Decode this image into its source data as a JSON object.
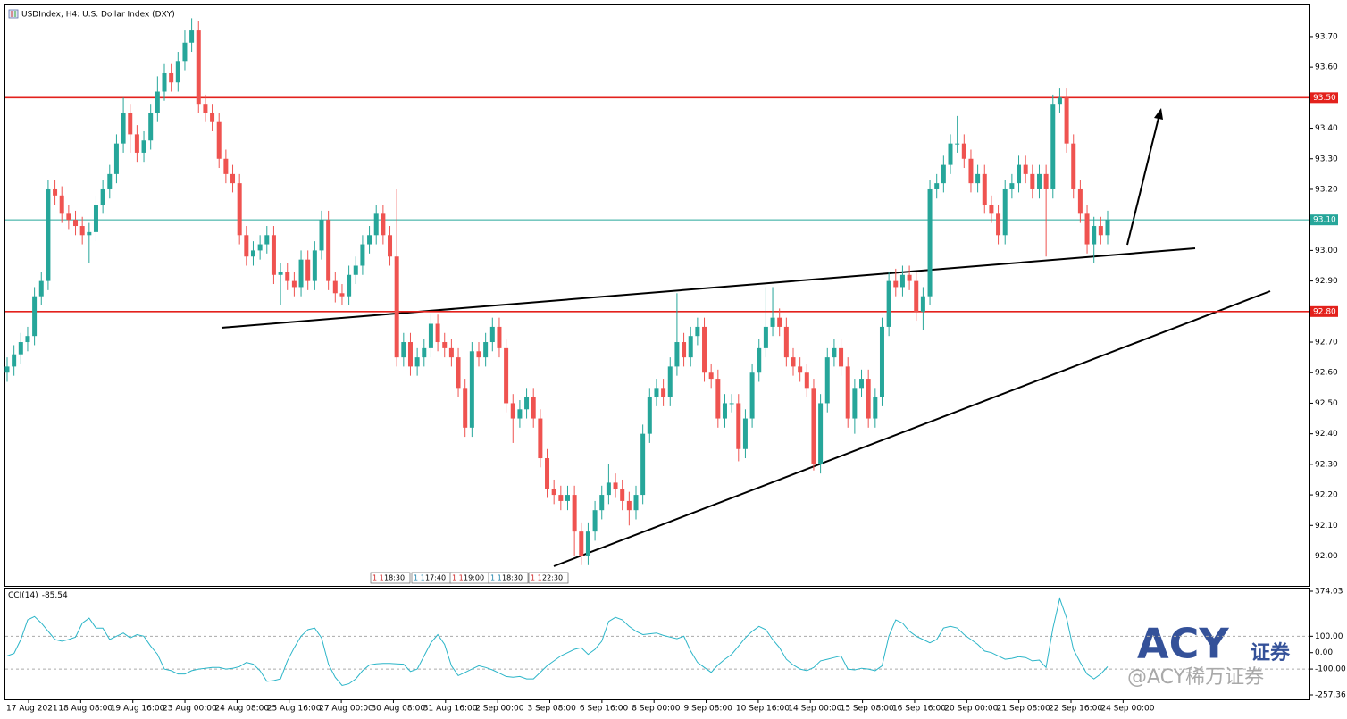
{
  "chart_data": {
    "type": "candlestick",
    "title": "USDIndex, H4:  U.S. Dollar Index (DXY)",
    "x_labels": [
      "17 Aug 2021",
      "18 Aug 08:00",
      "19 Aug 16:00",
      "23 Aug 00:00",
      "24 Aug 08:00",
      "25 Aug 16:00",
      "27 Aug 00:00",
      "30 Aug 08:00",
      "31 Aug 16:00",
      "2 Sep 00:00",
      "3 Sep 08:00",
      "6 Sep 16:00",
      "8 Sep 00:00",
      "9 Sep 08:00",
      "10 Sep 16:00",
      "14 Sep 00:00",
      "15 Sep 08:00",
      "16 Sep 16:00",
      "20 Sep 00:00",
      "21 Sep 08:00",
      "22 Sep 16:00",
      "24 Sep 00:00"
    ],
    "candles": {
      "up_color": "#26a69a",
      "down_color": "#ef5350",
      "open": [
        92.6,
        92.62,
        92.66,
        92.7,
        92.72,
        92.85,
        92.9,
        93.2,
        93.18,
        93.12,
        93.1,
        93.08,
        93.05,
        93.06,
        93.15,
        93.2,
        93.25,
        93.35,
        93.45,
        93.38,
        93.32,
        93.36,
        93.45,
        93.52,
        93.58,
        93.55,
        93.62,
        93.68,
        93.72,
        93.48,
        93.45,
        93.42,
        93.3,
        93.25,
        93.22,
        93.05,
        92.98,
        93.0,
        93.02,
        93.05,
        92.92,
        92.93,
        92.9,
        92.88,
        92.97,
        92.9,
        93.0,
        93.1,
        92.9,
        92.86,
        92.85,
        92.92,
        92.95,
        93.02,
        93.05,
        93.12,
        93.05,
        92.98,
        92.65,
        92.7,
        92.62,
        92.65,
        92.68,
        92.76,
        92.7,
        92.68,
        92.65,
        92.55,
        92.42,
        92.67,
        92.65,
        92.7,
        92.75,
        92.68,
        92.5,
        92.45,
        92.48,
        92.52,
        92.45,
        92.32,
        92.22,
        92.2,
        92.18,
        92.2,
        92.08,
        92.0,
        92.08,
        92.15,
        92.2,
        92.24,
        92.22,
        92.18,
        92.15,
        92.2,
        92.4,
        92.52,
        92.55,
        92.52,
        92.62,
        92.7,
        92.65,
        92.72,
        92.75,
        92.6,
        92.58,
        92.45,
        92.5,
        92.5,
        92.35,
        92.45,
        92.6,
        92.68,
        92.75,
        92.78,
        92.75,
        92.65,
        92.62,
        92.6,
        92.55,
        92.3,
        92.5,
        92.65,
        92.68,
        92.62,
        92.45,
        92.55,
        92.58,
        92.45,
        92.52,
        92.75,
        92.9,
        92.88,
        92.92,
        92.9,
        92.8,
        92.85,
        93.2,
        93.22,
        93.28,
        93.35,
        93.35,
        93.3,
        93.22,
        93.25,
        93.15,
        93.12,
        93.05,
        93.2,
        93.22,
        93.28,
        93.25,
        93.2,
        93.25,
        93.2,
        93.48,
        93.5,
        93.35,
        93.2,
        93.12,
        93.02,
        93.08,
        93.05
      ],
      "high": [
        92.65,
        92.69,
        92.73,
        92.75,
        92.88,
        92.93,
        93.23,
        93.23,
        93.21,
        93.15,
        93.13,
        93.11,
        93.09,
        93.18,
        93.23,
        93.28,
        93.38,
        93.5,
        93.48,
        93.41,
        93.39,
        93.48,
        93.57,
        93.61,
        93.61,
        93.65,
        93.72,
        93.76,
        93.75,
        93.51,
        93.48,
        93.45,
        93.33,
        93.28,
        93.25,
        93.08,
        93.03,
        93.05,
        93.08,
        93.08,
        92.96,
        92.96,
        92.93,
        93.0,
        93.0,
        93.03,
        93.13,
        93.13,
        92.93,
        92.89,
        92.95,
        92.98,
        93.05,
        93.08,
        93.15,
        93.15,
        93.08,
        93.2,
        92.73,
        92.73,
        92.68,
        92.71,
        92.79,
        92.79,
        92.73,
        92.71,
        92.68,
        92.58,
        92.7,
        92.7,
        92.73,
        92.78,
        92.78,
        92.71,
        92.53,
        92.51,
        92.55,
        92.55,
        92.48,
        92.35,
        92.25,
        92.23,
        92.23,
        92.23,
        92.11,
        92.11,
        92.18,
        92.23,
        92.3,
        92.27,
        92.25,
        92.21,
        92.23,
        92.43,
        92.55,
        92.58,
        92.58,
        92.65,
        92.86,
        92.73,
        92.75,
        92.78,
        92.78,
        92.63,
        92.61,
        92.53,
        92.53,
        92.53,
        92.48,
        92.63,
        92.71,
        92.88,
        92.88,
        92.81,
        92.78,
        92.68,
        92.65,
        92.63,
        92.58,
        92.53,
        92.68,
        92.71,
        92.71,
        92.65,
        92.58,
        92.61,
        92.61,
        92.55,
        92.78,
        92.93,
        92.94,
        92.95,
        92.95,
        92.93,
        92.88,
        93.23,
        93.25,
        93.31,
        93.38,
        93.44,
        93.38,
        93.33,
        93.28,
        93.28,
        93.18,
        93.15,
        93.23,
        93.25,
        93.31,
        93.31,
        93.28,
        93.28,
        93.28,
        93.51,
        93.53,
        93.53,
        93.38,
        93.23,
        93.15,
        93.11,
        93.11,
        93.13
      ],
      "low": [
        92.57,
        92.59,
        92.63,
        92.67,
        92.69,
        92.82,
        92.87,
        93.15,
        93.09,
        93.07,
        93.05,
        93.02,
        92.96,
        93.03,
        93.12,
        93.17,
        93.22,
        93.32,
        93.32,
        93.29,
        93.29,
        93.33,
        93.42,
        93.49,
        93.52,
        93.52,
        93.59,
        93.65,
        93.45,
        93.42,
        93.39,
        93.27,
        93.22,
        93.19,
        93.02,
        92.95,
        92.95,
        92.97,
        92.99,
        92.89,
        92.82,
        92.87,
        92.85,
        92.85,
        92.87,
        92.87,
        92.97,
        92.87,
        92.83,
        92.82,
        92.82,
        92.89,
        92.92,
        92.99,
        93.02,
        93.02,
        92.95,
        92.62,
        92.62,
        92.59,
        92.59,
        92.62,
        92.65,
        92.67,
        92.65,
        92.62,
        92.52,
        92.39,
        92.39,
        92.62,
        92.62,
        92.67,
        92.65,
        92.47,
        92.37,
        92.42,
        92.45,
        92.42,
        92.29,
        92.19,
        92.17,
        92.15,
        92.15,
        92.0,
        91.97,
        91.97,
        92.05,
        92.12,
        92.17,
        92.19,
        92.15,
        92.1,
        92.12,
        92.17,
        92.37,
        92.49,
        92.49,
        92.49,
        92.59,
        92.62,
        92.62,
        92.69,
        92.57,
        92.55,
        92.42,
        92.42,
        92.47,
        92.31,
        92.32,
        92.42,
        92.57,
        92.65,
        92.72,
        92.72,
        92.62,
        92.59,
        92.57,
        92.52,
        92.28,
        92.27,
        92.47,
        92.62,
        92.59,
        92.42,
        92.4,
        92.52,
        92.42,
        92.42,
        92.49,
        92.72,
        92.85,
        92.85,
        92.87,
        92.77,
        92.74,
        92.82,
        93.17,
        93.19,
        93.25,
        93.32,
        93.27,
        93.19,
        93.19,
        93.12,
        93.09,
        93.02,
        93.02,
        93.17,
        93.19,
        93.22,
        93.17,
        93.17,
        92.98,
        93.17,
        93.45,
        93.32,
        93.17,
        93.09,
        92.99,
        92.96,
        93.02,
        93.02
      ],
      "close": [
        92.62,
        92.66,
        92.7,
        92.72,
        92.85,
        92.9,
        93.2,
        93.18,
        93.12,
        93.1,
        93.08,
        93.05,
        93.06,
        93.15,
        93.2,
        93.25,
        93.35,
        93.45,
        93.38,
        93.32,
        93.36,
        93.45,
        93.52,
        93.58,
        93.55,
        93.62,
        93.68,
        93.72,
        93.48,
        93.45,
        93.42,
        93.3,
        93.25,
        93.22,
        93.05,
        92.98,
        93.0,
        93.02,
        93.05,
        92.92,
        92.93,
        92.9,
        92.88,
        92.97,
        92.9,
        93.0,
        93.1,
        92.9,
        92.86,
        92.85,
        92.92,
        92.95,
        93.02,
        93.05,
        93.12,
        93.05,
        92.98,
        92.65,
        92.7,
        92.62,
        92.65,
        92.68,
        92.76,
        92.7,
        92.68,
        92.65,
        92.55,
        92.42,
        92.67,
        92.65,
        92.7,
        92.75,
        92.68,
        92.5,
        92.45,
        92.48,
        92.52,
        92.45,
        92.32,
        92.22,
        92.2,
        92.18,
        92.2,
        92.08,
        92.0,
        92.08,
        92.15,
        92.2,
        92.24,
        92.22,
        92.18,
        92.15,
        92.2,
        92.4,
        92.52,
        92.55,
        92.52,
        92.62,
        92.7,
        92.65,
        92.72,
        92.75,
        92.6,
        92.58,
        92.45,
        92.5,
        92.5,
        92.35,
        92.45,
        92.6,
        92.68,
        92.75,
        92.78,
        92.75,
        92.65,
        92.62,
        92.6,
        92.55,
        92.3,
        92.5,
        92.65,
        92.68,
        92.62,
        92.45,
        92.55,
        92.58,
        92.45,
        92.52,
        92.75,
        92.9,
        92.88,
        92.92,
        92.9,
        92.8,
        92.85,
        93.2,
        93.22,
        93.28,
        93.35,
        93.35,
        93.3,
        93.22,
        93.25,
        93.15,
        93.12,
        93.05,
        93.2,
        93.22,
        93.28,
        93.25,
        93.2,
        93.25,
        93.2,
        93.48,
        93.5,
        93.35,
        93.2,
        93.12,
        93.02,
        93.08,
        93.05,
        93.1
      ]
    },
    "ylim": [
      91.905,
      93.805
    ],
    "yticks": [
      {
        "value": 92,
        "label": "92.00"
      },
      {
        "value": 92.1,
        "label": "92.10"
      },
      {
        "value": 92.2,
        "label": "92.20"
      },
      {
        "value": 92.3,
        "label": "92.30"
      },
      {
        "value": 92.4,
        "label": "92.40"
      },
      {
        "value": 92.5,
        "label": "92.50"
      },
      {
        "value": 92.6,
        "label": "92.60"
      },
      {
        "value": 92.7,
        "label": "92.70"
      },
      {
        "value": 92.8,
        "label": "92.80"
      },
      {
        "value": 92.9,
        "label": "92.90"
      },
      {
        "value": 93,
        "label": "93.00"
      },
      {
        "value": 93.1,
        "label": "93.10"
      },
      {
        "value": 93.2,
        "label": "93.20"
      },
      {
        "value": 93.3,
        "label": "93.30"
      },
      {
        "value": 93.4,
        "label": "93.40"
      },
      {
        "value": 93.5,
        "label": "93.50"
      },
      {
        "value": 93.6,
        "label": "93.60"
      },
      {
        "value": 93.7,
        "label": "93.70"
      }
    ],
    "hlines": [
      {
        "value": 93.5,
        "label": "93.50",
        "color": "#e3211c"
      },
      {
        "value": 93.1,
        "label": "93.10",
        "color": "#26a69a"
      },
      {
        "value": 92.8,
        "label": "92.80",
        "color": "#e3211c"
      }
    ],
    "trade_labels": [
      {
        "tag": "1 1",
        "time": "18:30"
      },
      {
        "tag": "1 1",
        "time": "17:40"
      },
      {
        "tag": "1 1",
        "time": "19:00"
      },
      {
        "tag": "1 1",
        "time": "18:30"
      },
      {
        "tag": "1 1",
        "time": "22:30"
      }
    ],
    "cci": {
      "type": "line",
      "name": "CCI(14)",
      "color": "#2bb5c8",
      "values": [
        -20,
        -5,
        80,
        200,
        220,
        180,
        130,
        80,
        70,
        80,
        95,
        180,
        210,
        150,
        150,
        80,
        100,
        120,
        90,
        110,
        100,
        40,
        -10,
        -100,
        -110,
        -130,
        -130,
        -110,
        -100,
        -95,
        -90,
        -90,
        -100,
        -95,
        -85,
        -60,
        -70,
        -110,
        -175,
        -170,
        -160,
        -50,
        30,
        100,
        140,
        150,
        90,
        -70,
        -150,
        -200,
        -190,
        -160,
        -110,
        -75,
        -68,
        -65,
        -66,
        -68,
        -70,
        -115,
        -100,
        -20,
        60,
        110,
        50,
        -80,
        -140,
        -120,
        -100,
        -80,
        -90,
        -105,
        -125,
        -145,
        -150,
        -145,
        -160,
        -160,
        -120,
        -80,
        -50,
        -20,
        0,
        20,
        30,
        -10,
        20,
        70,
        190,
        215,
        200,
        160,
        130,
        110,
        115,
        120,
        105,
        95,
        85,
        100,
        10,
        -60,
        -90,
        -120,
        -75,
        -40,
        -10,
        40,
        90,
        130,
        160,
        140,
        80,
        30,
        -40,
        -75,
        -100,
        -110,
        -90,
        -50,
        -40,
        -30,
        -20,
        -100,
        -105,
        -95,
        -100,
        -110,
        -80,
        100,
        200,
        180,
        130,
        100,
        80,
        60,
        80,
        150,
        160,
        150,
        110,
        80,
        50,
        10,
        0,
        -20,
        -40,
        -35,
        -25,
        -30,
        -50,
        -45,
        -90,
        150,
        330,
        210,
        20,
        -60,
        -130,
        -160,
        -130,
        -85.54
      ],
      "ylim": [
        -257.36,
        374.03
      ],
      "yticks": [
        374.03,
        {
          "value": 100,
          "label": "100.00"
        },
        {
          "value": 0,
          "label": "0.00"
        },
        {
          "value": -100,
          "label": "-100.00"
        },
        -257.36
      ],
      "levels": [
        100,
        -100
      ]
    }
  },
  "watermark": {
    "logo": "ACY",
    "cn": "证券",
    "handle": "@ACY稀万证券"
  }
}
